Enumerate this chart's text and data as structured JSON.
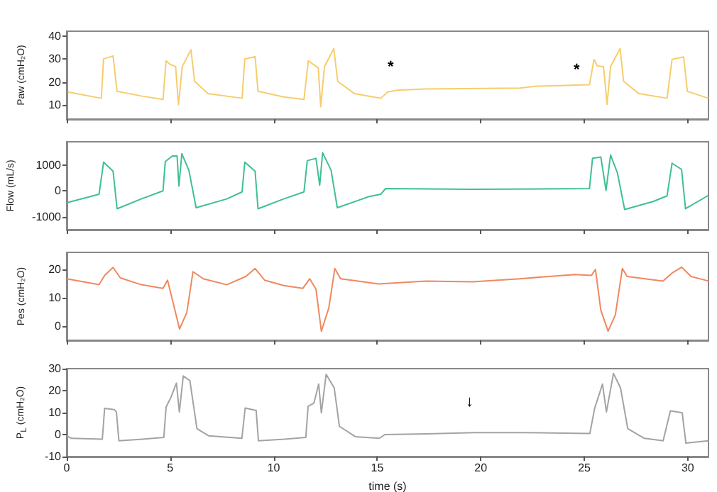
{
  "chart_data": [
    {
      "type": "line",
      "ylabel": "Paw (cmH₂O)",
      "color": "#f6cd6e",
      "xlim": [
        0,
        31
      ],
      "xticks": [
        0,
        5,
        10,
        15,
        20,
        25,
        30
      ],
      "ylim": [
        4,
        42
      ],
      "yticks": [
        10,
        20,
        30,
        40
      ],
      "tick_labels": "y",
      "grid": false,
      "x": [
        0.05,
        1.67,
        1.78,
        2.24,
        2.43,
        3.6,
        4.65,
        4.8,
        4.99,
        5.26,
        5.4,
        5.58,
        6.0,
        6.18,
        6.82,
        8.47,
        8.6,
        9.1,
        9.24,
        10.48,
        11.46,
        11.67,
        11.9,
        12.15,
        12.27,
        12.45,
        12.9,
        13.09,
        13.9,
        15.17,
        15.5,
        15.97,
        17.35,
        21.9,
        22.6,
        25.25,
        25.47,
        25.63,
        25.93,
        26.1,
        26.27,
        26.73,
        26.9,
        27.64,
        29.0,
        29.24,
        29.8,
        29.98,
        31.0
      ],
      "values": [
        15.7,
        13,
        30,
        31.3,
        16,
        14,
        12.5,
        29.2,
        27.7,
        26.7,
        10.2,
        26.7,
        34,
        20.3,
        15,
        13,
        30,
        31,
        16,
        13.6,
        12.5,
        29.2,
        27.7,
        26.2,
        9.4,
        26.7,
        34.5,
        20.3,
        15,
        13,
        15.7,
        16.5,
        17,
        17.4,
        18.2,
        18.9,
        29.8,
        27,
        26.7,
        10.4,
        26.7,
        34.5,
        20.3,
        15,
        13,
        29.8,
        30.9,
        16,
        13
      ],
      "annotations": [
        "*",
        "*"
      ]
    },
    {
      "type": "line",
      "ylabel": "Flow (mL/s)",
      "color": "#3fbf95",
      "xlim": [
        0,
        31
      ],
      "xticks": [
        0,
        5,
        10,
        15,
        20,
        25,
        30
      ],
      "ylim": [
        -1500,
        1900
      ],
      "yticks": [
        -1000,
        0,
        1000
      ],
      "tick_labels": "y",
      "grid": false,
      "x": [
        0,
        1.56,
        1.78,
        2.24,
        2.43,
        3.6,
        4.65,
        4.76,
        5.1,
        5.33,
        5.42,
        5.56,
        5.9,
        6.25,
        7.73,
        8.47,
        8.6,
        9.1,
        9.24,
        10.48,
        11.46,
        11.62,
        12.04,
        12.22,
        12.36,
        12.77,
        13.07,
        14.6,
        15.17,
        15.4,
        19.6,
        25.25,
        25.4,
        25.8,
        26.05,
        26.27,
        26.6,
        26.95,
        28.33,
        29.0,
        29.24,
        29.7,
        29.89,
        31.0
      ],
      "values": [
        -460,
        -130,
        1110,
        760,
        -690,
        -310,
        0,
        1130,
        1350,
        1350,
        190,
        1440,
        800,
        -650,
        -310,
        -40,
        1110,
        760,
        -690,
        -310,
        -40,
        1170,
        1260,
        220,
        1480,
        800,
        -650,
        -220,
        -130,
        90,
        60,
        90,
        1260,
        1310,
        20,
        1390,
        700,
        -720,
        -410,
        -190,
        1070,
        830,
        -690,
        -170
      ]
    },
    {
      "type": "line",
      "ylabel": "Pes (cmH₂O)",
      "color": "#f0885f",
      "xlim": [
        0,
        31
      ],
      "xticks": [
        0,
        5,
        10,
        15,
        20,
        25,
        30
      ],
      "ylim": [
        -5,
        26
      ],
      "yticks": [
        0,
        10,
        20
      ],
      "tick_labels": "y",
      "grid": false,
      "x": [
        0,
        1.56,
        1.83,
        2.24,
        2.59,
        3.6,
        4.65,
        4.87,
        5.45,
        5.8,
        6.1,
        6.6,
        7.73,
        8.65,
        9.1,
        9.56,
        10.48,
        11.4,
        11.74,
        12.04,
        12.3,
        12.66,
        12.95,
        13.23,
        15.06,
        17.35,
        19.6,
        21.9,
        23.07,
        24.55,
        25.35,
        25.54,
        25.8,
        26.15,
        26.5,
        26.84,
        27.07,
        28.8,
        29.24,
        29.7,
        30.16,
        31.0
      ],
      "values": [
        16.7,
        14.6,
        17.9,
        20.7,
        17,
        14.6,
        13.3,
        16.2,
        -1,
        4.8,
        19.2,
        16.7,
        14.6,
        17.5,
        20.3,
        16.2,
        14.3,
        13.3,
        16.7,
        13,
        -1.8,
        6.4,
        20.3,
        16.7,
        14.9,
        15.9,
        15.6,
        16.7,
        17.4,
        18.2,
        17.9,
        20,
        5.6,
        -1.8,
        3.9,
        20.3,
        17.5,
        15.9,
        18.7,
        20.8,
        17.5,
        15.9
      ]
    },
    {
      "type": "line",
      "ylabel": "P$_{L}$ (cmH₂O)",
      "xlabel": "time (s)",
      "color": "#a3a3a3",
      "xlim": [
        0,
        31
      ],
      "xticks": [
        0,
        5,
        10,
        15,
        20,
        25,
        30
      ],
      "ylim": [
        -10,
        30
      ],
      "yticks": [
        -10,
        0,
        10,
        20,
        30
      ],
      "grid": false,
      "x": [
        0,
        0.23,
        1.72,
        1.83,
        2.29,
        2.4,
        2.52,
        3.66,
        4.69,
        4.8,
        5.03,
        5.3,
        5.44,
        5.63,
        5.95,
        6.29,
        6.86,
        8.46,
        8.62,
        9.15,
        9.26,
        10.52,
        11.55,
        11.66,
        11.94,
        12.17,
        12.3,
        12.53,
        12.92,
        13.17,
        13.95,
        15.1,
        15.37,
        17.38,
        19.67,
        21.95,
        25.27,
        25.5,
        25.88,
        26.07,
        26.41,
        26.75,
        27.1,
        27.9,
        28.81,
        29.16,
        29.73,
        29.91,
        31.0
      ],
      "values": [
        -0.6,
        -1.7,
        -2.1,
        11.9,
        11.4,
        10.3,
        -2.8,
        -2.1,
        -1.3,
        12.5,
        16.9,
        23.4,
        10.3,
        26.7,
        24.5,
        2.7,
        -0.6,
        -1.7,
        12.1,
        11,
        -2.8,
        -2.1,
        -1.3,
        12.9,
        14.3,
        23,
        9.9,
        27.4,
        21.3,
        3.8,
        -1,
        -1.7,
        0,
        0.3,
        0.9,
        0.9,
        0.5,
        11.9,
        23,
        10.3,
        27.8,
        21.3,
        2.7,
        -1.7,
        -2.8,
        10.8,
        9.9,
        -3.9,
        -2.8
      ],
      "annotations": [
        "↓"
      ]
    }
  ]
}
